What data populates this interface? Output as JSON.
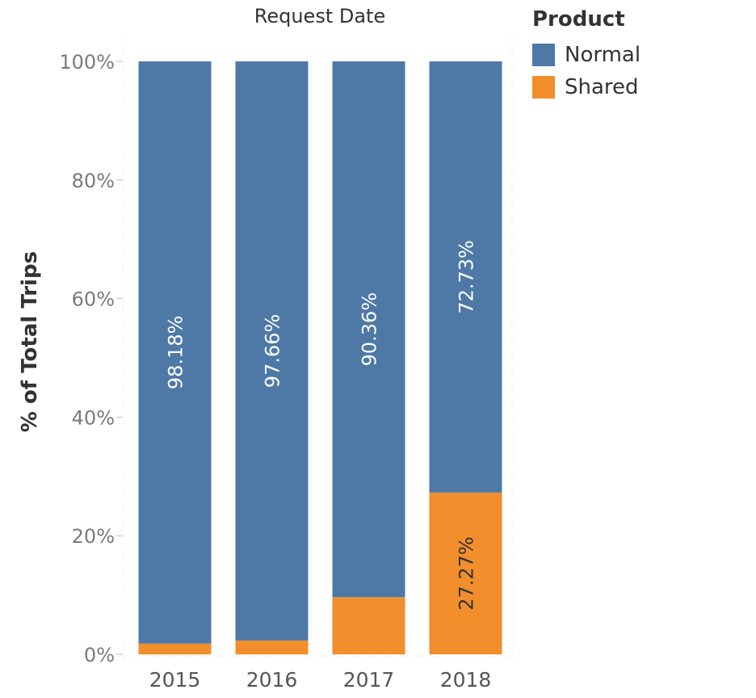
{
  "chart_data": {
    "type": "bar",
    "stacked": true,
    "title": "Request Date",
    "xlabel": "",
    "ylabel": "% of Total Trips",
    "categories": [
      "2015",
      "2016",
      "2017",
      "2018"
    ],
    "series": [
      {
        "name": "Normal",
        "color": "#4e79a7",
        "values": [
          98.18,
          97.66,
          90.36,
          72.73
        ],
        "labels": [
          "98.18%",
          "97.66%",
          "90.36%",
          "72.73%"
        ]
      },
      {
        "name": "Shared",
        "color": "#f28e2b",
        "values": [
          1.82,
          2.34,
          9.64,
          27.27
        ],
        "labels": [
          "",
          "",
          "",
          "27.27%"
        ]
      }
    ],
    "ylim": [
      0,
      100
    ],
    "yticks": [
      0,
      20,
      40,
      60,
      80,
      100
    ],
    "ytick_labels": [
      "0%",
      "20%",
      "40%",
      "60%",
      "80%",
      "100%"
    ],
    "grid": false,
    "legend": {
      "title": "Product",
      "position": "top-right"
    }
  }
}
